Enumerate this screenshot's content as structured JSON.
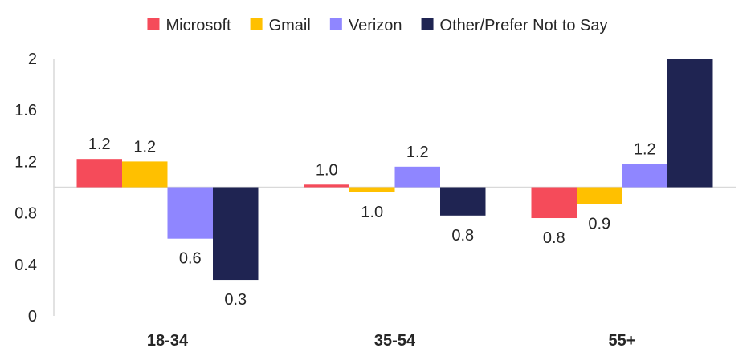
{
  "chart_data": {
    "type": "bar",
    "title": "",
    "xlabel": "",
    "ylabel": "",
    "baseline": 1,
    "ylim": [
      0,
      2
    ],
    "yticks": [
      "0",
      "0.4",
      "0.8",
      "1.2",
      "1.6",
      "2"
    ],
    "categories": [
      "18-34",
      "35-54",
      "55+"
    ],
    "legend_position": "top",
    "grid": false,
    "series": [
      {
        "name": "Microsoft",
        "color": "#f54b5a",
        "values": [
          1.22,
          1.02,
          0.76
        ],
        "labels": [
          "1.2",
          "1.0",
          "0.8"
        ]
      },
      {
        "name": "Gmail",
        "color": "#ffc000",
        "values": [
          1.2,
          0.96,
          0.87
        ],
        "labels": [
          "1.2",
          "1.0",
          "0.9"
        ]
      },
      {
        "name": "Verizon",
        "color": "#8f86ff",
        "values": [
          0.6,
          1.16,
          1.18
        ],
        "labels": [
          "0.6",
          "1.2",
          "1.2"
        ]
      },
      {
        "name": "Other/Prefer Not to Say",
        "color": "#1f2452",
        "values": [
          0.28,
          0.78,
          2.0
        ],
        "labels": [
          "0.3",
          "0.8",
          ""
        ]
      }
    ]
  }
}
